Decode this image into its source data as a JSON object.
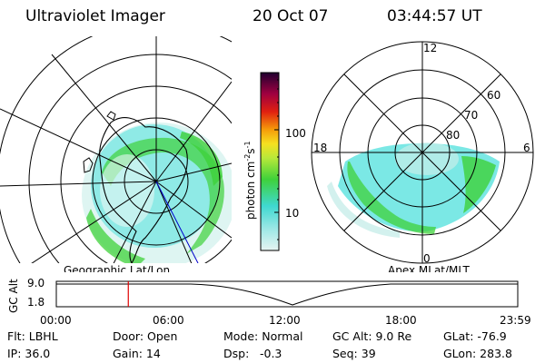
{
  "header": {
    "title": "Ultraviolet Imager",
    "date": "20 Oct 07",
    "time": "03:44:57 UT"
  },
  "colorbar": {
    "unit_main": "photon cm",
    "unit_exp1": "-2",
    "unit_s": "s",
    "unit_exp2": "-1",
    "ticks": [
      "100",
      "10"
    ]
  },
  "left_panel": {
    "caption": "Geographic Lat/Lon"
  },
  "right_panel": {
    "caption": "Apex MLat/MLT",
    "mlt_labels": {
      "top": "12",
      "left": "18",
      "right": "6",
      "bottom": "0"
    },
    "lat_labels": [
      "60",
      "70",
      "80"
    ]
  },
  "timeline": {
    "ylabel": "GC Alt",
    "yticks": [
      "9.0",
      "1.8"
    ],
    "xticks": [
      "00:00",
      "06:00",
      "12:00",
      "18:00",
      "23:59"
    ],
    "marker_fraction": 0.156
  },
  "footer": {
    "flt": "Flt: LBHL",
    "ip": "IP: 36.0",
    "door": "Door: Open",
    "gain": "Gain: 14",
    "mode": "Mode: Normal",
    "dsp_label": "Dsp:",
    "dsp_value": "-0.3",
    "gc_alt": "GC Alt: 9.0 Re",
    "seq": "Seq: 39",
    "glat": "GLat: -76.9",
    "glon": "GLon: 283.8"
  },
  "colors": {
    "aurora_green": "#3fd13a",
    "aurora_cyan": "#4fe0dc",
    "aurora_pale": "#c8eeea",
    "marker": "#e00000",
    "meridian": "#0000cc"
  }
}
